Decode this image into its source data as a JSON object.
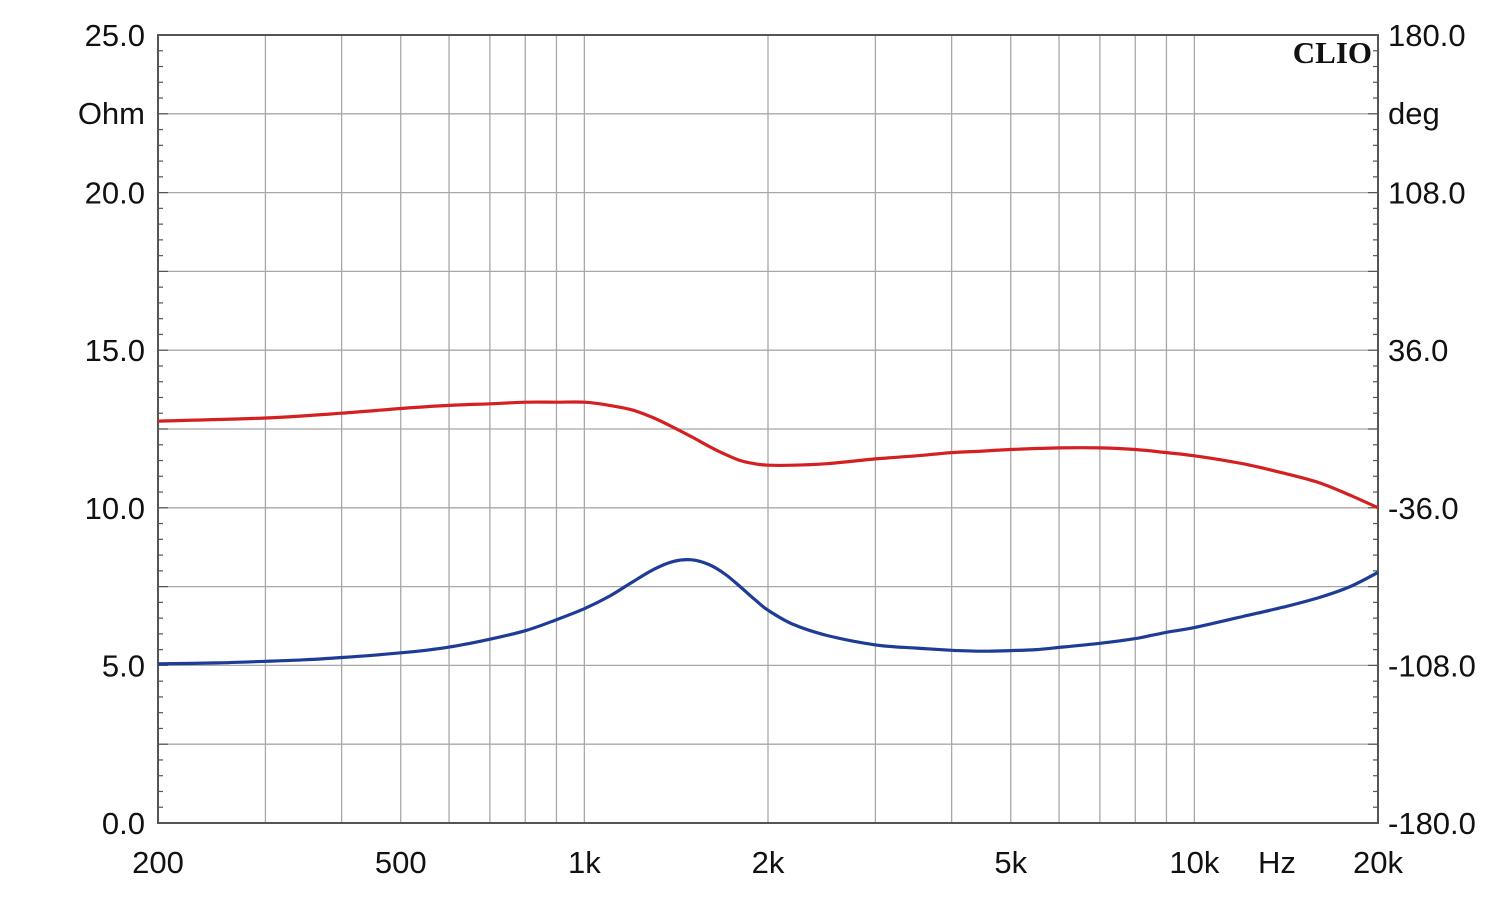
{
  "chart_data": {
    "type": "line",
    "brand": "CLIO",
    "x_scale": "log",
    "xlim": [
      200,
      20000
    ],
    "x_ticks": [
      {
        "value": 200,
        "label": "200"
      },
      {
        "value": 500,
        "label": "500"
      },
      {
        "value": 1000,
        "label": "1k"
      },
      {
        "value": 2000,
        "label": "2k"
      },
      {
        "value": 5000,
        "label": "5k"
      },
      {
        "value": 10000,
        "label": "10k"
      },
      {
        "value": 20000,
        "label": "20k"
      }
    ],
    "x_unit": "Hz",
    "y_left": {
      "unit": "Ohm",
      "lim": [
        0,
        25
      ],
      "ticks": [
        {
          "value": 0,
          "label": "0.0"
        },
        {
          "value": 5,
          "label": "5.0"
        },
        {
          "value": 10,
          "label": "10.0"
        },
        {
          "value": 15,
          "label": "15.0"
        },
        {
          "value": 20,
          "label": "20.0"
        },
        {
          "value": 25,
          "label": "25.0"
        }
      ]
    },
    "y_right": {
      "unit": "deg",
      "lim": [
        -180,
        180
      ],
      "ticks": [
        {
          "value": -180,
          "label": "-180.0"
        },
        {
          "value": -108,
          "label": "-108.0"
        },
        {
          "value": -36,
          "label": "-36.0"
        },
        {
          "value": 36,
          "label": "36.0"
        },
        {
          "value": 108,
          "label": "108.0"
        },
        {
          "value": 180,
          "label": "180.0"
        }
      ]
    },
    "grid": true,
    "series": [
      {
        "color": "#d42020",
        "axis": "left",
        "points": [
          [
            200,
            12.75
          ],
          [
            300,
            12.85
          ],
          [
            400,
            13.0
          ],
          [
            500,
            13.15
          ],
          [
            600,
            13.25
          ],
          [
            700,
            13.3
          ],
          [
            800,
            13.35
          ],
          [
            900,
            13.35
          ],
          [
            1000,
            13.35
          ],
          [
            1100,
            13.25
          ],
          [
            1200,
            13.1
          ],
          [
            1300,
            12.85
          ],
          [
            1400,
            12.55
          ],
          [
            1500,
            12.25
          ],
          [
            1600,
            11.95
          ],
          [
            1700,
            11.7
          ],
          [
            1800,
            11.5
          ],
          [
            1900,
            11.4
          ],
          [
            2000,
            11.35
          ],
          [
            2200,
            11.35
          ],
          [
            2500,
            11.4
          ],
          [
            3000,
            11.55
          ],
          [
            3500,
            11.65
          ],
          [
            4000,
            11.75
          ],
          [
            4500,
            11.8
          ],
          [
            5000,
            11.85
          ],
          [
            6000,
            11.9
          ],
          [
            7000,
            11.9
          ],
          [
            8000,
            11.85
          ],
          [
            9000,
            11.75
          ],
          [
            10000,
            11.65
          ],
          [
            12000,
            11.4
          ],
          [
            14000,
            11.1
          ],
          [
            16000,
            10.8
          ],
          [
            18000,
            10.4
          ],
          [
            20000,
            10.0
          ]
        ]
      },
      {
        "color": "#1e3c96",
        "axis": "left",
        "points": [
          [
            200,
            5.05
          ],
          [
            250,
            5.08
          ],
          [
            300,
            5.13
          ],
          [
            350,
            5.18
          ],
          [
            400,
            5.25
          ],
          [
            450,
            5.32
          ],
          [
            500,
            5.4
          ],
          [
            550,
            5.48
          ],
          [
            600,
            5.58
          ],
          [
            650,
            5.7
          ],
          [
            700,
            5.83
          ],
          [
            800,
            6.1
          ],
          [
            900,
            6.45
          ],
          [
            1000,
            6.8
          ],
          [
            1100,
            7.2
          ],
          [
            1200,
            7.65
          ],
          [
            1300,
            8.05
          ],
          [
            1400,
            8.3
          ],
          [
            1500,
            8.35
          ],
          [
            1600,
            8.2
          ],
          [
            1700,
            7.9
          ],
          [
            1800,
            7.5
          ],
          [
            1900,
            7.1
          ],
          [
            2000,
            6.75
          ],
          [
            2200,
            6.3
          ],
          [
            2500,
            5.95
          ],
          [
            3000,
            5.65
          ],
          [
            3500,
            5.55
          ],
          [
            4000,
            5.48
          ],
          [
            4500,
            5.45
          ],
          [
            5000,
            5.47
          ],
          [
            5500,
            5.5
          ],
          [
            6000,
            5.57
          ],
          [
            7000,
            5.7
          ],
          [
            8000,
            5.85
          ],
          [
            9000,
            6.05
          ],
          [
            10000,
            6.2
          ],
          [
            12000,
            6.55
          ],
          [
            14000,
            6.85
          ],
          [
            16000,
            7.15
          ],
          [
            18000,
            7.5
          ],
          [
            20000,
            7.95
          ]
        ]
      }
    ]
  }
}
